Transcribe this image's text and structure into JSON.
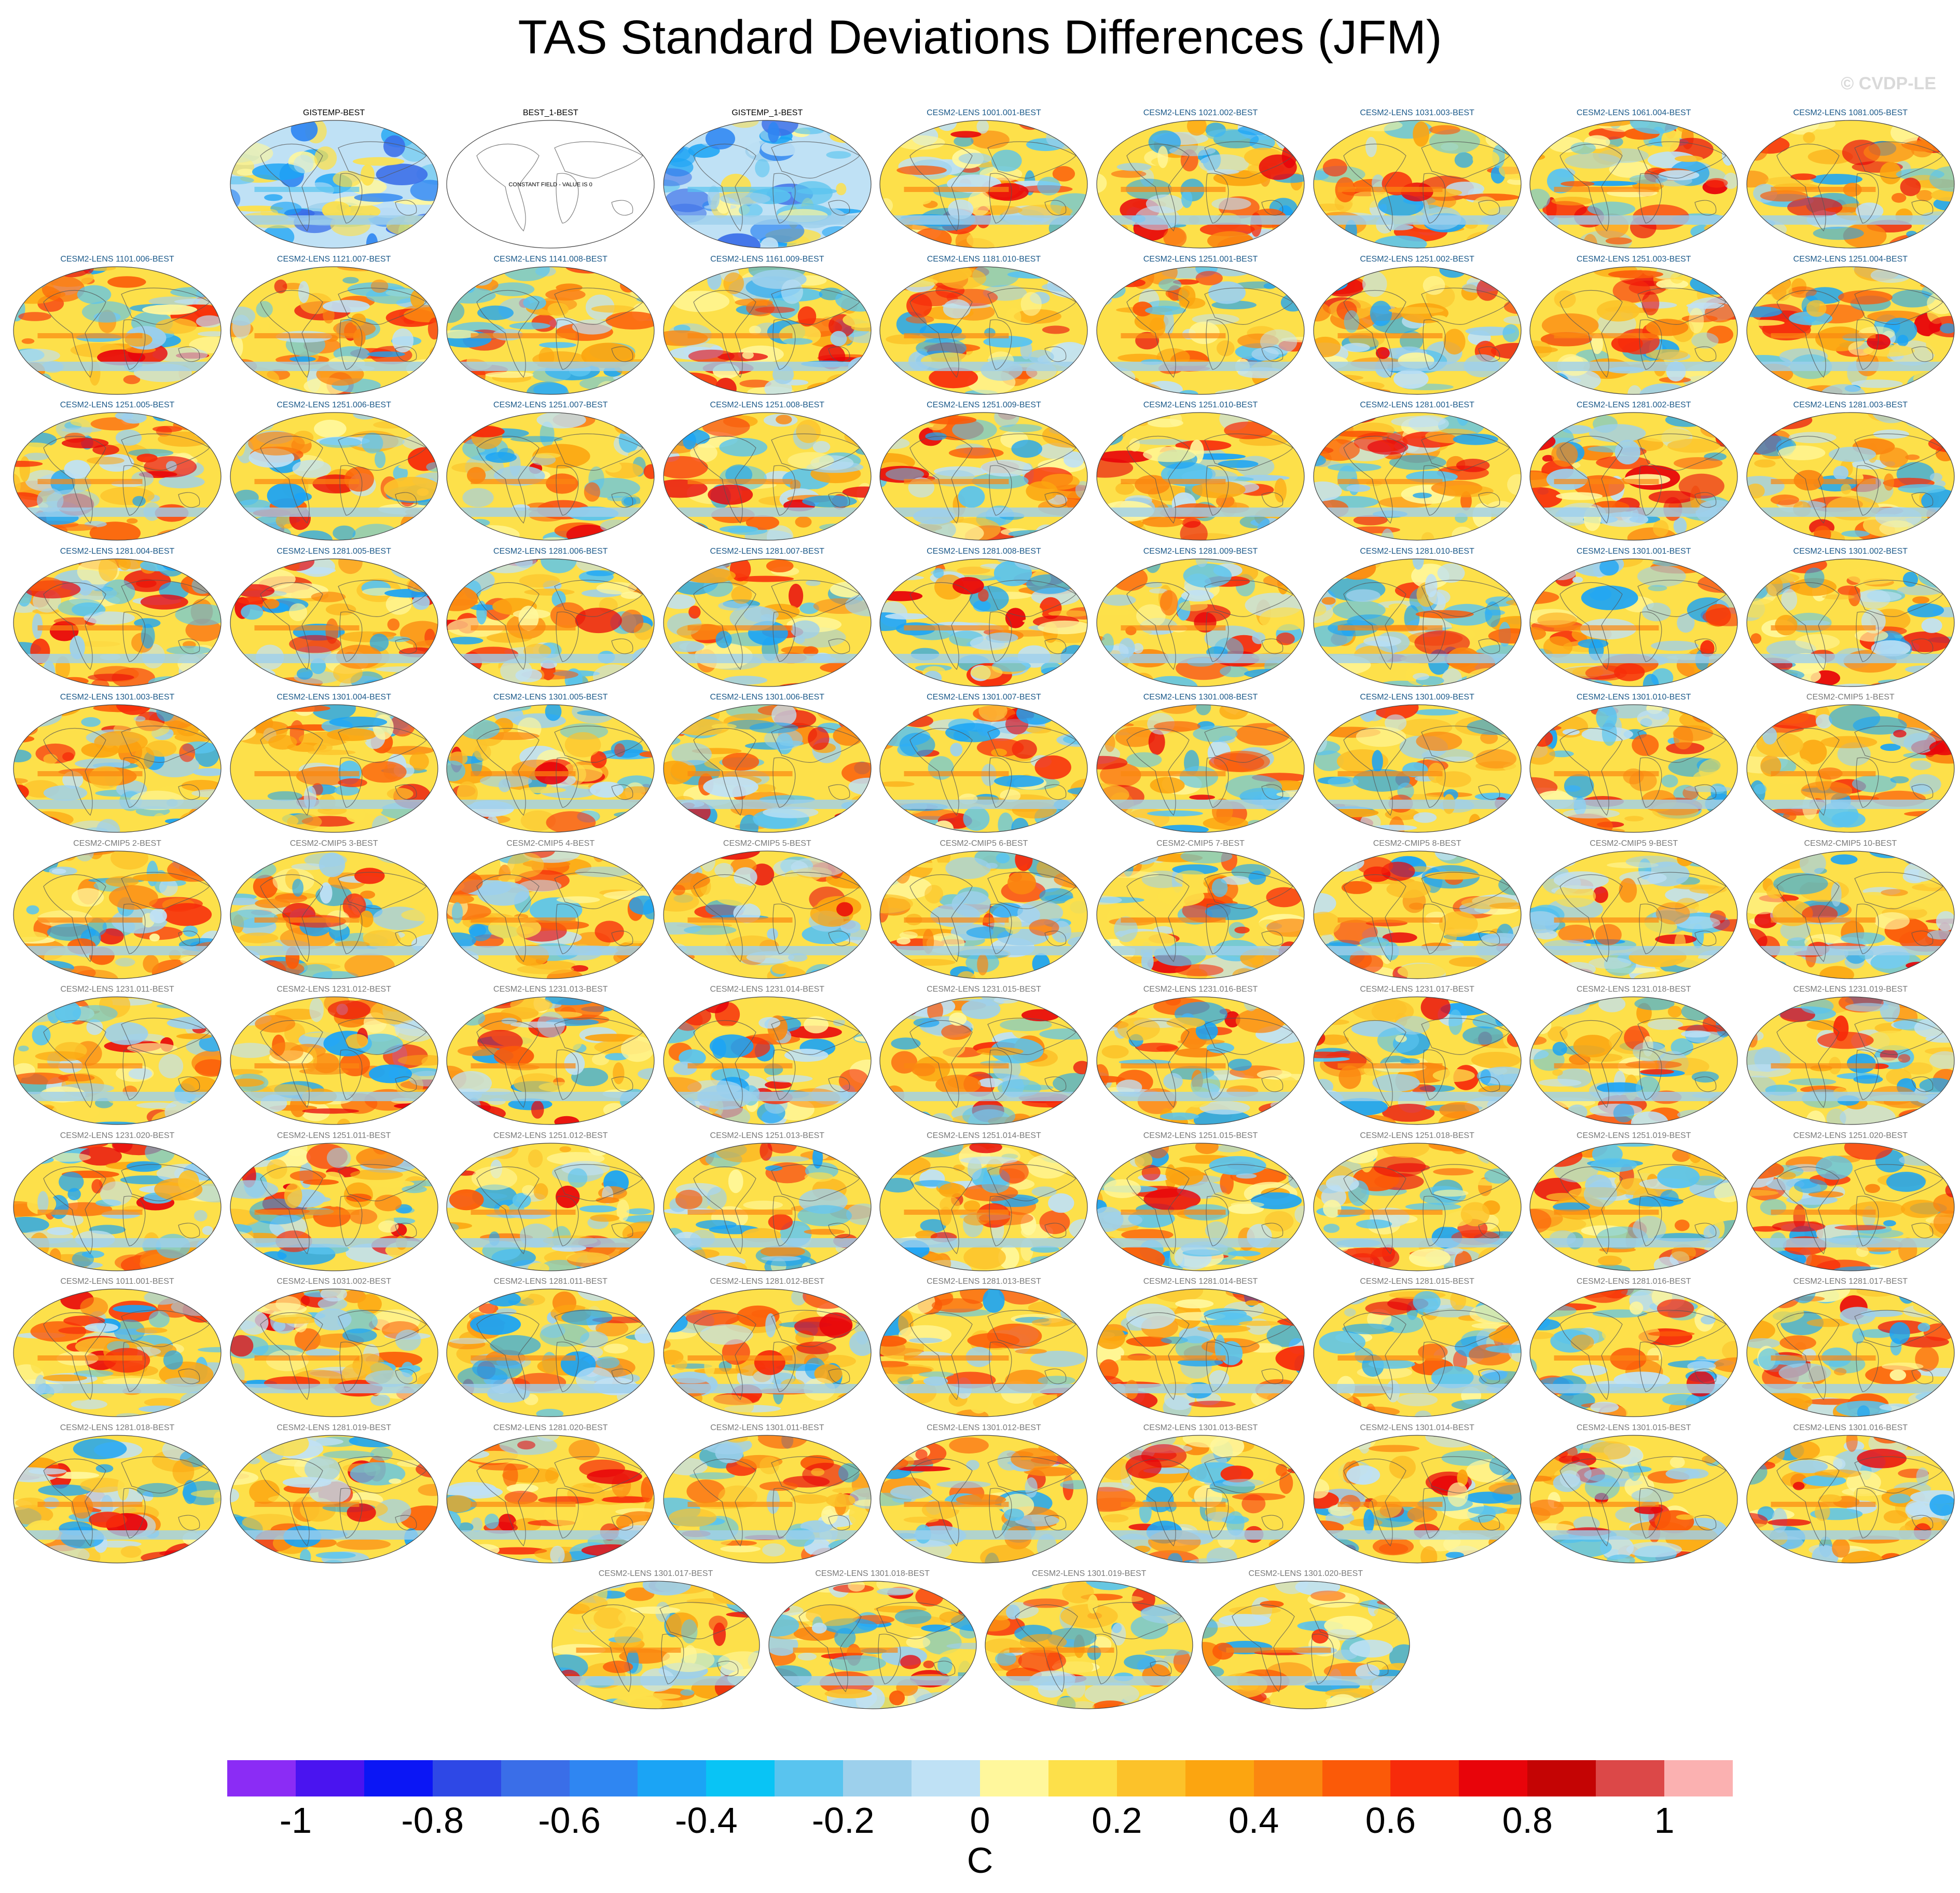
{
  "title": "TAS Standard Deviations Differences (JFM)",
  "watermark": "© CVDP-LE",
  "map_type": "global robinson-projection difference maps",
  "panel_rows": [
    [
      {
        "label": "GISTEMP-BEST",
        "style": "obs",
        "field": "mostly-negative"
      },
      {
        "label": "BEST_1-BEST",
        "style": "obs",
        "field": "constant",
        "note": "CONSTANT FIELD - VALUE IS 0"
      },
      {
        "label": "GISTEMP_1-BEST",
        "style": "obs",
        "field": "mostly-negative"
      },
      {
        "label": "CESM2-LENS 1001.001-BEST",
        "style": "lens1"
      },
      {
        "label": "CESM2-LENS 1021.002-BEST",
        "style": "lens1"
      },
      {
        "label": "CESM2-LENS 1031.003-BEST",
        "style": "lens1"
      },
      {
        "label": "CESM2-LENS 1061.004-BEST",
        "style": "lens1"
      },
      {
        "label": "CESM2-LENS 1081.005-BEST",
        "style": "lens1"
      }
    ],
    [
      {
        "label": "CESM2-LENS 1101.006-BEST",
        "style": "lens1"
      },
      {
        "label": "CESM2-LENS 1121.007-BEST",
        "style": "lens1"
      },
      {
        "label": "CESM2-LENS 1141.008-BEST",
        "style": "lens1"
      },
      {
        "label": "CESM2-LENS 1161.009-BEST",
        "style": "lens1"
      },
      {
        "label": "CESM2-LENS 1181.010-BEST",
        "style": "lens1"
      },
      {
        "label": "CESM2-LENS 1251.001-BEST",
        "style": "lens1"
      },
      {
        "label": "CESM2-LENS 1251.002-BEST",
        "style": "lens1"
      },
      {
        "label": "CESM2-LENS 1251.003-BEST",
        "style": "lens1"
      },
      {
        "label": "CESM2-LENS 1251.004-BEST",
        "style": "lens1"
      }
    ],
    [
      {
        "label": "CESM2-LENS 1251.005-BEST",
        "style": "lens1"
      },
      {
        "label": "CESM2-LENS 1251.006-BEST",
        "style": "lens1"
      },
      {
        "label": "CESM2-LENS 1251.007-BEST",
        "style": "lens1"
      },
      {
        "label": "CESM2-LENS 1251.008-BEST",
        "style": "lens1"
      },
      {
        "label": "CESM2-LENS 1251.009-BEST",
        "style": "lens1"
      },
      {
        "label": "CESM2-LENS 1251.010-BEST",
        "style": "lens1"
      },
      {
        "label": "CESM2-LENS 1281.001-BEST",
        "style": "lens1"
      },
      {
        "label": "CESM2-LENS 1281.002-BEST",
        "style": "lens1"
      },
      {
        "label": "CESM2-LENS 1281.003-BEST",
        "style": "lens1"
      }
    ],
    [
      {
        "label": "CESM2-LENS 1281.004-BEST",
        "style": "lens1"
      },
      {
        "label": "CESM2-LENS 1281.005-BEST",
        "style": "lens1"
      },
      {
        "label": "CESM2-LENS 1281.006-BEST",
        "style": "lens1"
      },
      {
        "label": "CESM2-LENS 1281.007-BEST",
        "style": "lens1"
      },
      {
        "label": "CESM2-LENS 1281.008-BEST",
        "style": "lens1"
      },
      {
        "label": "CESM2-LENS 1281.009-BEST",
        "style": "lens1"
      },
      {
        "label": "CESM2-LENS 1281.010-BEST",
        "style": "lens1"
      },
      {
        "label": "CESM2-LENS 1301.001-BEST",
        "style": "lens1"
      },
      {
        "label": "CESM2-LENS 1301.002-BEST",
        "style": "lens1"
      }
    ],
    [
      {
        "label": "CESM2-LENS 1301.003-BEST",
        "style": "lens1"
      },
      {
        "label": "CESM2-LENS 1301.004-BEST",
        "style": "lens1"
      },
      {
        "label": "CESM2-LENS 1301.005-BEST",
        "style": "lens1"
      },
      {
        "label": "CESM2-LENS 1301.006-BEST",
        "style": "lens1"
      },
      {
        "label": "CESM2-LENS 1301.007-BEST",
        "style": "lens1"
      },
      {
        "label": "CESM2-LENS 1301.008-BEST",
        "style": "lens1"
      },
      {
        "label": "CESM2-LENS 1301.009-BEST",
        "style": "lens1"
      },
      {
        "label": "CESM2-LENS 1301.010-BEST",
        "style": "lens1"
      },
      {
        "label": "CESM2-CMIP5 1-BEST",
        "style": "other"
      }
    ],
    [
      {
        "label": "CESM2-CMIP5 2-BEST",
        "style": "other"
      },
      {
        "label": "CESM2-CMIP5 3-BEST",
        "style": "other"
      },
      {
        "label": "CESM2-CMIP5 4-BEST",
        "style": "other"
      },
      {
        "label": "CESM2-CMIP5 5-BEST",
        "style": "other"
      },
      {
        "label": "CESM2-CMIP5 6-BEST",
        "style": "other"
      },
      {
        "label": "CESM2-CMIP5 7-BEST",
        "style": "other"
      },
      {
        "label": "CESM2-CMIP5 8-BEST",
        "style": "other"
      },
      {
        "label": "CESM2-CMIP5 9-BEST",
        "style": "other"
      },
      {
        "label": "CESM2-CMIP5 10-BEST",
        "style": "other"
      }
    ],
    [
      {
        "label": "CESM2-LENS 1231.011-BEST",
        "style": "other"
      },
      {
        "label": "CESM2-LENS 1231.012-BEST",
        "style": "other"
      },
      {
        "label": "CESM2-LENS 1231.013-BEST",
        "style": "other"
      },
      {
        "label": "CESM2-LENS 1231.014-BEST",
        "style": "other"
      },
      {
        "label": "CESM2-LENS 1231.015-BEST",
        "style": "other"
      },
      {
        "label": "CESM2-LENS 1231.016-BEST",
        "style": "other"
      },
      {
        "label": "CESM2-LENS 1231.017-BEST",
        "style": "other"
      },
      {
        "label": "CESM2-LENS 1231.018-BEST",
        "style": "other"
      },
      {
        "label": "CESM2-LENS 1231.019-BEST",
        "style": "other"
      }
    ],
    [
      {
        "label": "CESM2-LENS 1231.020-BEST",
        "style": "other"
      },
      {
        "label": "CESM2-LENS 1251.011-BEST",
        "style": "other"
      },
      {
        "label": "CESM2-LENS 1251.012-BEST",
        "style": "other"
      },
      {
        "label": "CESM2-LENS 1251.013-BEST",
        "style": "other"
      },
      {
        "label": "CESM2-LENS 1251.014-BEST",
        "style": "other"
      },
      {
        "label": "CESM2-LENS 1251.015-BEST",
        "style": "other"
      },
      {
        "label": "CESM2-LENS 1251.018-BEST",
        "style": "other"
      },
      {
        "label": "CESM2-LENS 1251.019-BEST",
        "style": "other"
      },
      {
        "label": "CESM2-LENS 1251.020-BEST",
        "style": "other"
      }
    ],
    [
      {
        "label": "CESM2-LENS 1011.001-BEST",
        "style": "other"
      },
      {
        "label": "CESM2-LENS 1031.002-BEST",
        "style": "other"
      },
      {
        "label": "CESM2-LENS 1281.011-BEST",
        "style": "other"
      },
      {
        "label": "CESM2-LENS 1281.012-BEST",
        "style": "other"
      },
      {
        "label": "CESM2-LENS 1281.013-BEST",
        "style": "other"
      },
      {
        "label": "CESM2-LENS 1281.014-BEST",
        "style": "other"
      },
      {
        "label": "CESM2-LENS 1281.015-BEST",
        "style": "other"
      },
      {
        "label": "CESM2-LENS 1281.016-BEST",
        "style": "other"
      },
      {
        "label": "CESM2-LENS 1281.017-BEST",
        "style": "other"
      }
    ],
    [
      {
        "label": "CESM2-LENS 1281.018-BEST",
        "style": "other"
      },
      {
        "label": "CESM2-LENS 1281.019-BEST",
        "style": "other"
      },
      {
        "label": "CESM2-LENS 1281.020-BEST",
        "style": "other"
      },
      {
        "label": "CESM2-LENS 1301.011-BEST",
        "style": "other"
      },
      {
        "label": "CESM2-LENS 1301.012-BEST",
        "style": "other"
      },
      {
        "label": "CESM2-LENS 1301.013-BEST",
        "style": "other"
      },
      {
        "label": "CESM2-LENS 1301.014-BEST",
        "style": "other"
      },
      {
        "label": "CESM2-LENS 1301.015-BEST",
        "style": "other"
      },
      {
        "label": "CESM2-LENS 1301.016-BEST",
        "style": "other"
      }
    ],
    [
      {
        "label": "CESM2-LENS 1301.017-BEST",
        "style": "other"
      },
      {
        "label": "CESM2-LENS 1301.018-BEST",
        "style": "other"
      },
      {
        "label": "CESM2-LENS 1301.019-BEST",
        "style": "other"
      },
      {
        "label": "CESM2-LENS 1301.020-BEST",
        "style": "other"
      }
    ]
  ],
  "colorbar": {
    "unit": "C",
    "ticks": [
      "-1",
      "-0.8",
      "-0.6",
      "-0.4",
      "-0.2",
      "0",
      "0.2",
      "0.4",
      "0.6",
      "0.8",
      "1"
    ],
    "bounds": [
      -1.1,
      1.1
    ],
    "step": 0.1,
    "colors": [
      "#8b2cf5",
      "#4a14f0",
      "#0b16f5",
      "#2e48e6",
      "#3a6ee8",
      "#2f86f2",
      "#1ba4f5",
      "#09c4f5",
      "#59c4ef",
      "#9dd0ec",
      "#bfe1f5",
      "#fff79c",
      "#fde04a",
      "#fcc22a",
      "#fca510",
      "#fb8710",
      "#fb5a08",
      "#f72b0a",
      "#e8040a",
      "#c40404",
      "#dc4848",
      "#fbb1b1"
    ]
  }
}
